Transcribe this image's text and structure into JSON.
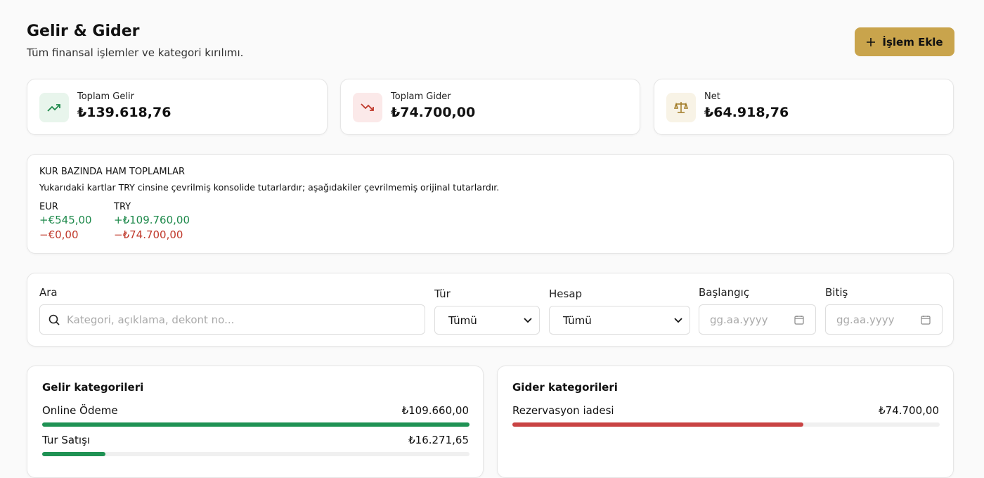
{
  "header": {
    "title": "Gelir & Gider",
    "subtitle": "Tüm finansal işlemler ve kategori kırılımı.",
    "button": "İşlem Ekle"
  },
  "summary": [
    {
      "label": "Toplam Gelir",
      "value": "₺139.618,76"
    },
    {
      "label": "Toplam Gider",
      "value": "₺74.700,00"
    },
    {
      "label": "Net",
      "value": "₺64.918,76"
    }
  ],
  "raw_totals": {
    "title": "KUR BAZINDA HAM TOPLAMLAR",
    "note": "Yukarıdaki kartlar TRY cinsine çevrilmiş konsolide tutarlardır; aşağıdakiler çevrilmemiş orijinal tutarlardır.",
    "currencies": [
      {
        "code": "EUR",
        "income": "+€545,00",
        "expense": "−€0,00"
      },
      {
        "code": "TRY",
        "income": "+₺109.760,00",
        "expense": "−₺74.700,00"
      }
    ]
  },
  "filters": {
    "search_label": "Ara",
    "search_placeholder": "Kategori, açıklama, dekont no...",
    "type_label": "Tür",
    "type_value": "Tümü",
    "account_label": "Hesap",
    "account_value": "Tümü",
    "start_label": "Başlangıç",
    "start_placeholder": "gg.aa.yyyy",
    "end_label": "Bitiş",
    "end_placeholder": "gg.aa.yyyy"
  },
  "categories": {
    "income": {
      "title": "Gelir kategorileri",
      "items": [
        {
          "name": "Online Ödeme",
          "amount": {
            "value": 109660,
            "label": "₺109.660,00"
          }
        },
        {
          "name": "Tur Satışı",
          "amount": {
            "value": 16271.65,
            "label": "₺16.271,65"
          }
        }
      ]
    },
    "expense": {
      "title": "Gider kategorileri",
      "items": [
        {
          "name": "Rezervasyon iadesi",
          "amount": {
            "value": 74700,
            "label": "₺74.700,00"
          }
        }
      ]
    }
  }
}
